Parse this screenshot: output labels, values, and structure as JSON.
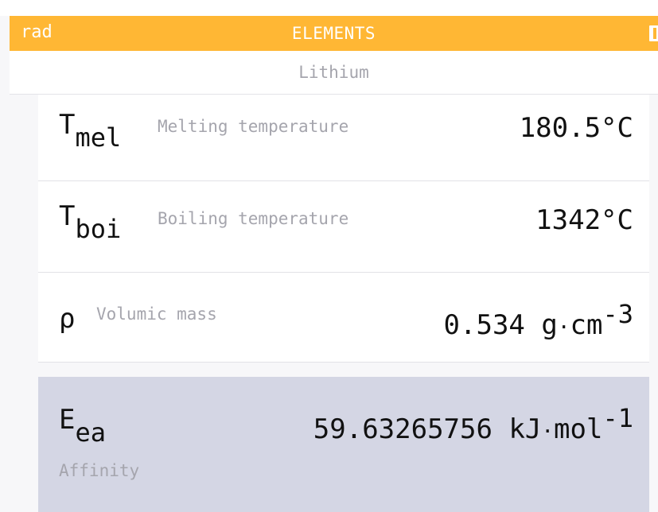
{
  "status_bar": {
    "angle_mode": "rad",
    "app_title": "ELEMENTS"
  },
  "element": {
    "name": "Lithium"
  },
  "properties": [
    {
      "symbol": "T",
      "subscript": "mel",
      "description": "Melting temperature",
      "value": "180.5°C"
    },
    {
      "symbol": "T",
      "subscript": "boi",
      "description": "Boiling temperature",
      "value": "1342°C"
    },
    {
      "symbol": "ρ",
      "subscript": "",
      "description": "Volumic mass",
      "value": "0.534",
      "unit_a": "g",
      "unit_dot": "·",
      "unit_b": "cm",
      "exponent": "-3"
    },
    {
      "symbol": "E",
      "subscript": "ea",
      "description": "Affinity",
      "value": "59.63265756",
      "unit_a": "kJ",
      "unit_dot": "·",
      "unit_b": "mol",
      "exponent": "-1",
      "selected": true
    }
  ],
  "colors": {
    "accent": "#ffb734",
    "selected_row": "#d4d6e4",
    "secondary_text": "#a5a5ad"
  },
  "icons": {
    "battery": "battery-icon"
  }
}
